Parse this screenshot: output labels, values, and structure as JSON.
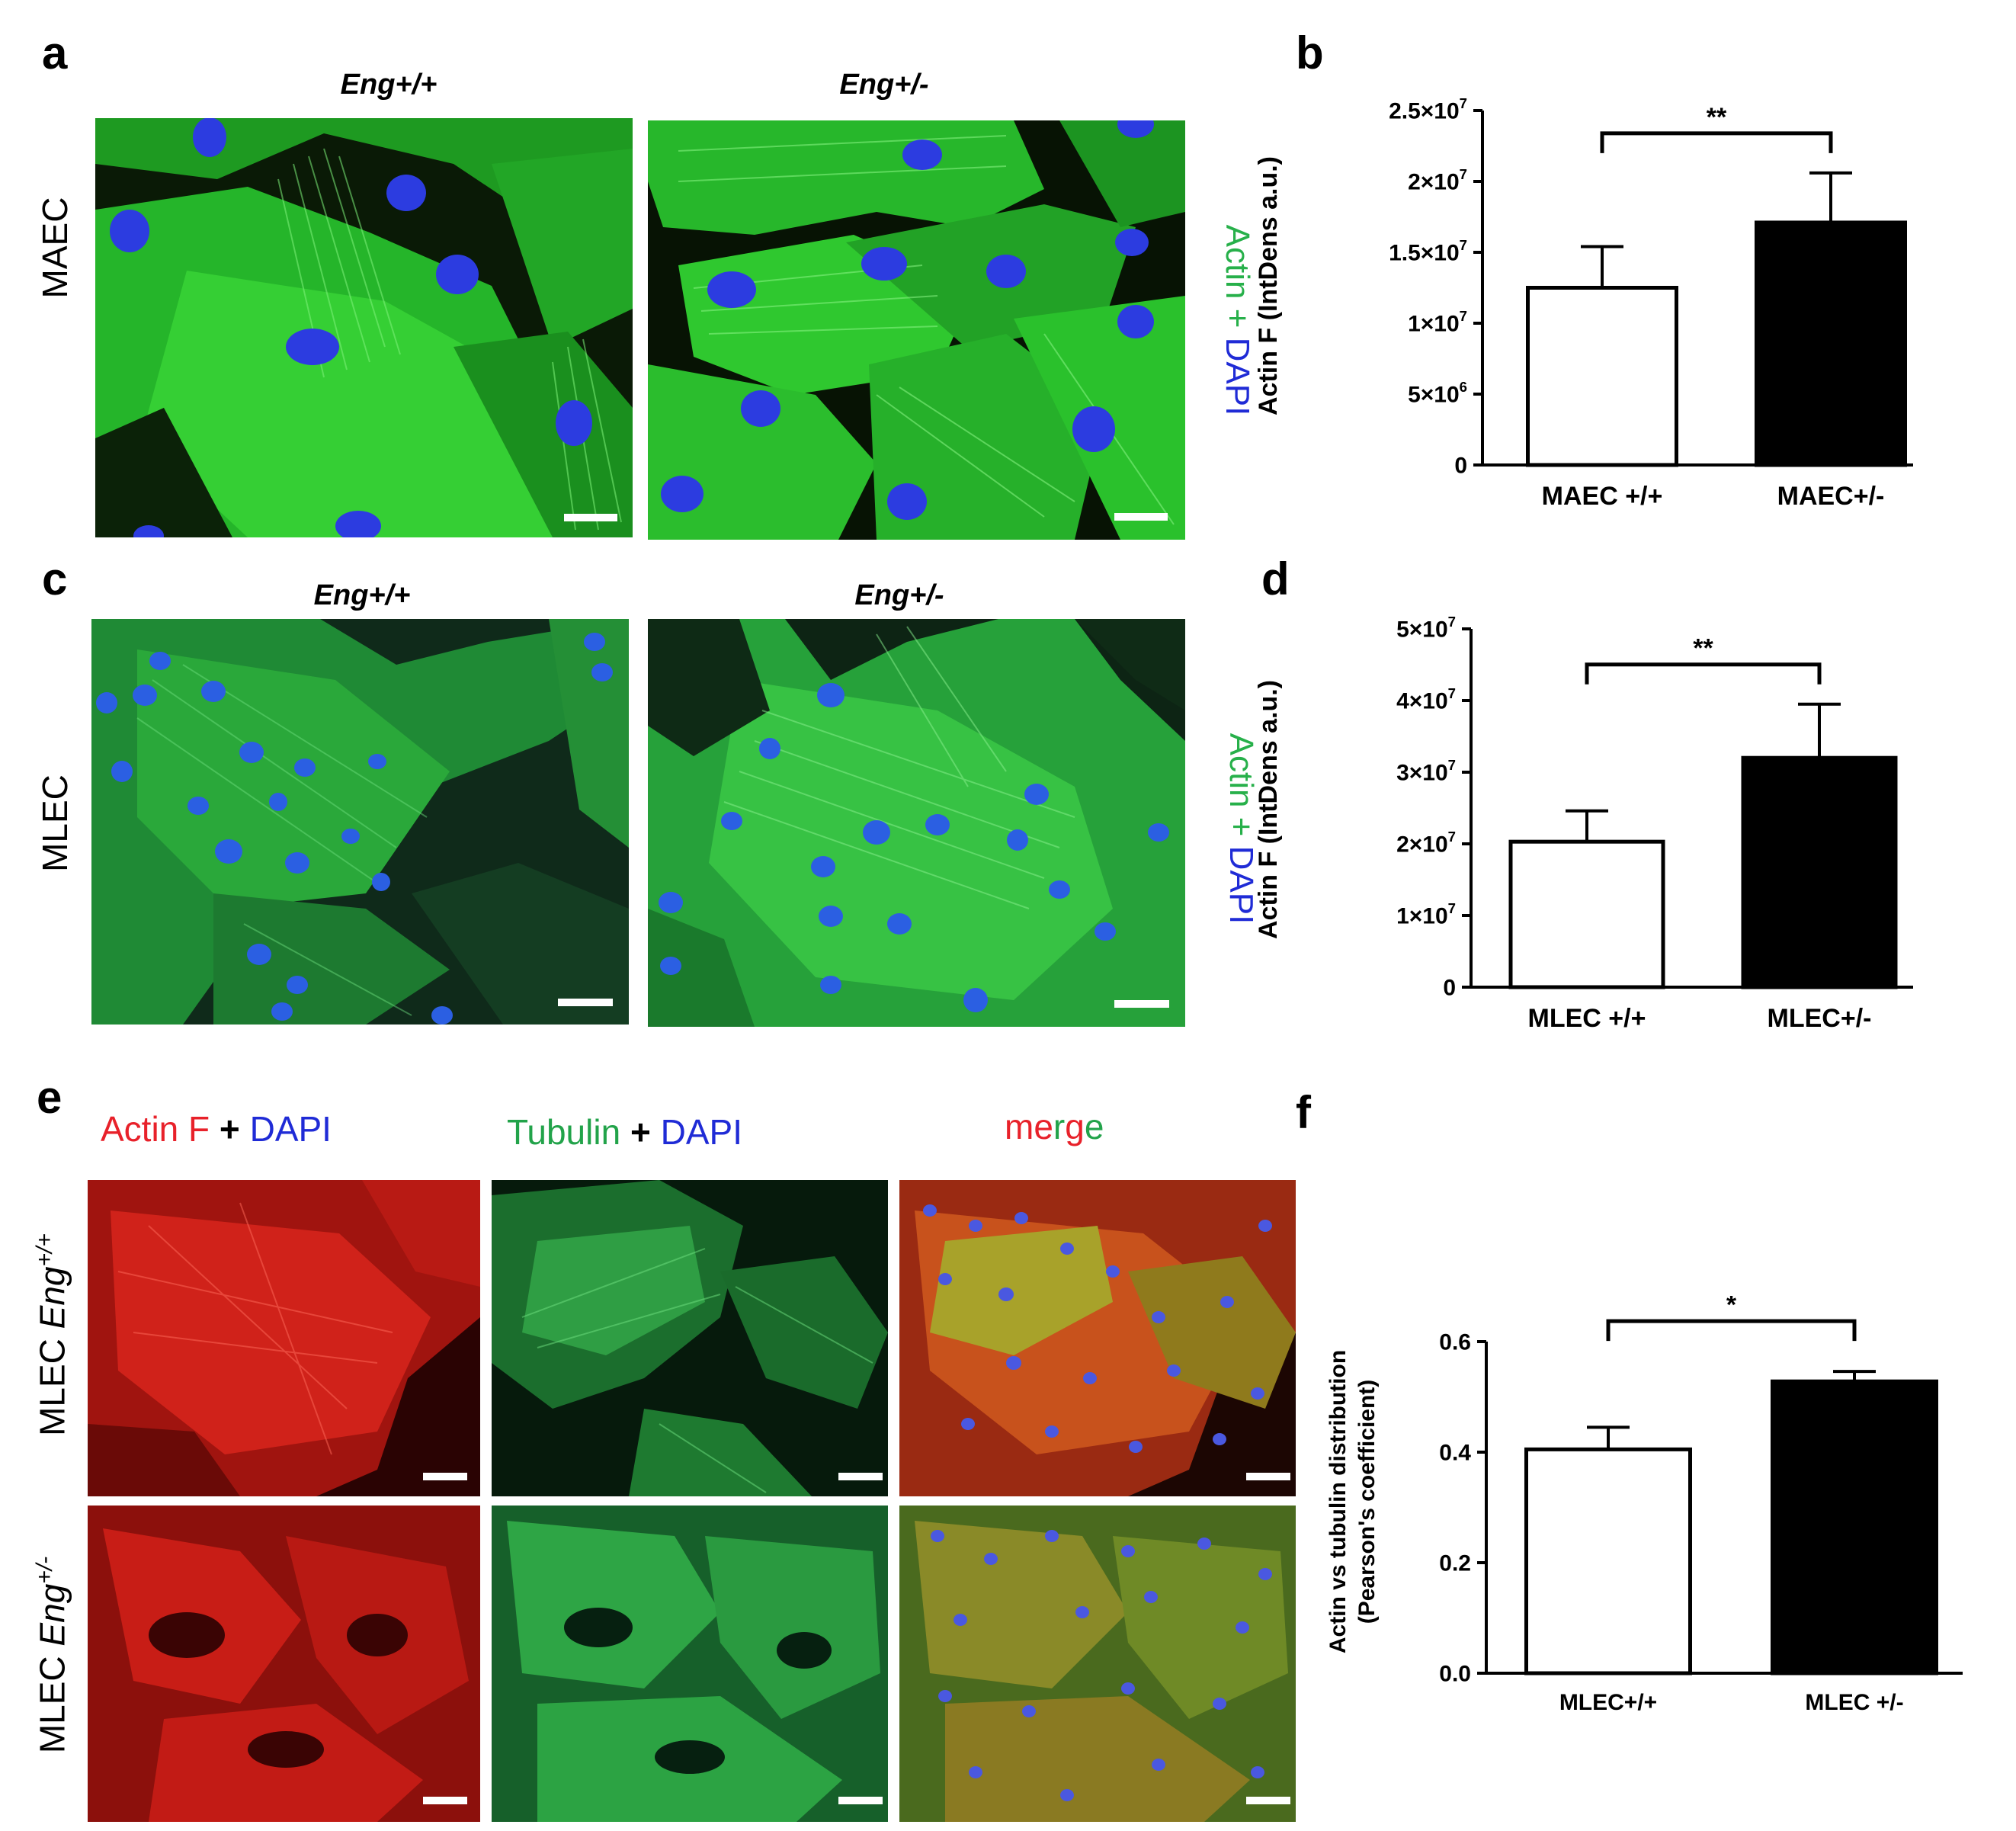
{
  "colors": {
    "actin_green": "#27b04a",
    "dapi_blue": "#1f2bd6",
    "actin_red": "#e8212a",
    "tubulin_green": "#22a34a"
  },
  "panels": {
    "a": "a",
    "b": "b",
    "c": "c",
    "d": "d",
    "e": "e",
    "f": "f"
  },
  "row_a": {
    "row_label": "MAEC",
    "col1": "Eng+/+",
    "col2": "Eng+/-",
    "stain_actin": "Actin",
    "stain_plus": " + ",
    "stain_dapi": "DAPI"
  },
  "row_c": {
    "row_label": "MLEC",
    "col1": "Eng+/+",
    "col2": "Eng+/-",
    "stain_actin": "Actin",
    "stain_plus": " + ",
    "stain_dapi": "DAPI"
  },
  "row_e": {
    "col1": {
      "a": "Actin F",
      "b": " + ",
      "c": "DAPI"
    },
    "col2": {
      "a": "Tubulin",
      "b": " + ",
      "c": "DAPI"
    },
    "col3": {
      "m": "m",
      "e": "e",
      "r": "r",
      "g": "g",
      "e2": "e"
    },
    "row1_prefix": "MLEC ",
    "row1_gene": "Eng",
    "row1_sup": "+/+",
    "row2_prefix": "MLEC ",
    "row2_gene": "Eng",
    "row2_sup": "+/-"
  },
  "chart_data": [
    {
      "type": "bar",
      "panel": "b",
      "categories": [
        "MAEC +/+",
        "MAEC+/-"
      ],
      "values": [
        12500000,
        17100000
      ],
      "errors": [
        2900000,
        3500000
      ],
      "fill": [
        "#ffffff",
        "#000000"
      ],
      "ylabel": "Actin F (IntDens a.u.)",
      "ylim": [
        0,
        25000000
      ],
      "ticks": [
        {
          "v": 0,
          "mant": "0",
          "exp": ""
        },
        {
          "v": 5000000,
          "mant": "5×10",
          "exp": "6"
        },
        {
          "v": 10000000,
          "mant": "1×10",
          "exp": "7"
        },
        {
          "v": 15000000,
          "mant": "1.5×10",
          "exp": "7"
        },
        {
          "v": 20000000,
          "mant": "2×10",
          "exp": "7"
        },
        {
          "v": 25000000,
          "mant": "2.5×10",
          "exp": "7"
        }
      ],
      "significance": "**"
    },
    {
      "type": "bar",
      "panel": "d",
      "categories": [
        "MLEC +/+",
        "MLEC+/-"
      ],
      "values": [
        20300000,
        32000000
      ],
      "errors": [
        4300000,
        7500000
      ],
      "fill": [
        "#ffffff",
        "#000000"
      ],
      "ylabel": "Actin F (IntDens a.u.)",
      "ylim": [
        0,
        50000000
      ],
      "ticks": [
        {
          "v": 0,
          "mant": "0",
          "exp": ""
        },
        {
          "v": 10000000,
          "mant": "1×10",
          "exp": "7"
        },
        {
          "v": 20000000,
          "mant": "2×10",
          "exp": "7"
        },
        {
          "v": 30000000,
          "mant": "3×10",
          "exp": "7"
        },
        {
          "v": 40000000,
          "mant": "4×10",
          "exp": "7"
        },
        {
          "v": 50000000,
          "mant": "5×10",
          "exp": "7"
        }
      ],
      "significance": "**"
    },
    {
      "type": "bar",
      "panel": "f",
      "categories": [
        "MLEC+/+",
        "MLEC +/-"
      ],
      "values": [
        0.405,
        0.528
      ],
      "errors": [
        0.04,
        0.018
      ],
      "fill": [
        "#ffffff",
        "#000000"
      ],
      "ylabel": "Actin vs tubulin distribution",
      "ylabel2": "(Pearson's coefficient)",
      "ylim": [
        0,
        0.6
      ],
      "ticks": [
        {
          "v": 0,
          "mant": "0.0",
          "exp": ""
        },
        {
          "v": 0.2,
          "mant": "0.2",
          "exp": ""
        },
        {
          "v": 0.4,
          "mant": "0.4",
          "exp": ""
        },
        {
          "v": 0.6,
          "mant": "0.6",
          "exp": ""
        }
      ],
      "significance": "*"
    }
  ]
}
